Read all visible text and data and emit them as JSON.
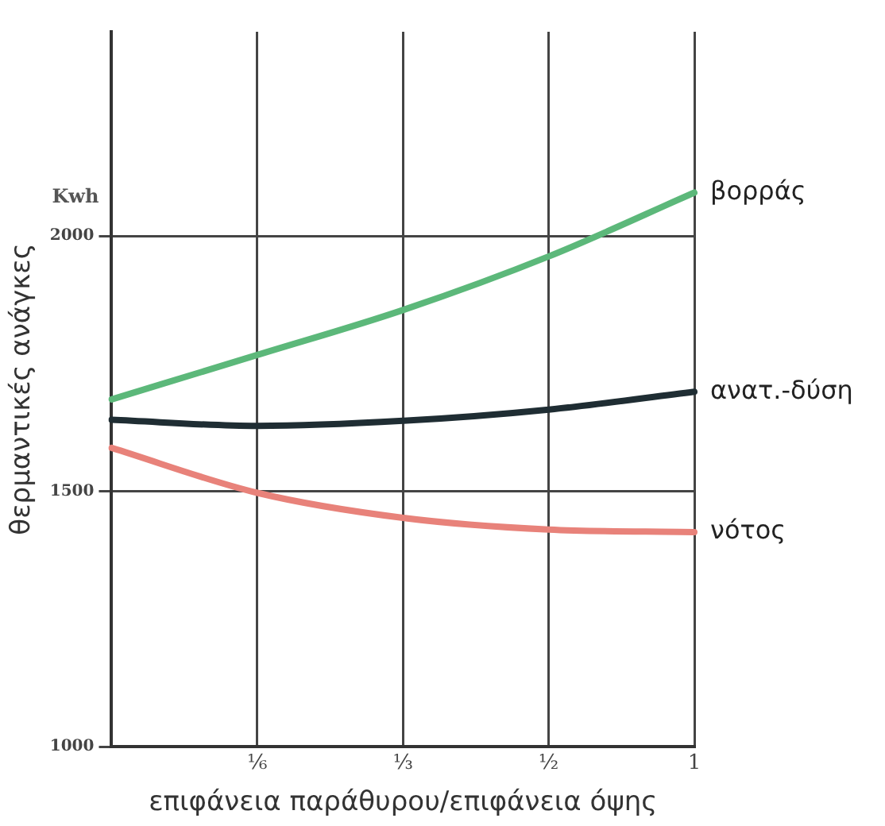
{
  "chart_data": {
    "type": "line",
    "xlabel": "επιφάνεια παράθυρου/επιφάνεια όψης",
    "ylabel": "θερμαντικές ανάγκες",
    "annotations": [
      "Kwh"
    ],
    "categories": [
      null,
      "⅙",
      "⅓",
      "½",
      "1"
    ],
    "ylim": [
      1000,
      2400
    ],
    "yticks": [
      1000,
      1500,
      2000
    ],
    "grid": true,
    "legend": false,
    "marker": "none",
    "line_style": "solid",
    "series": [
      {
        "name": "βορράς",
        "color": "#5cb87a",
        "values": [
          1680,
          1767,
          1855,
          1960,
          2085
        ]
      },
      {
        "name": "ανατ.-δύση",
        "color": "#1f2d33",
        "values": [
          1640,
          1628,
          1638,
          1660,
          1695
        ]
      },
      {
        "name": "νότος",
        "color": "#e8827a",
        "values": [
          1585,
          1497,
          1448,
          1425,
          1420
        ]
      }
    ]
  }
}
